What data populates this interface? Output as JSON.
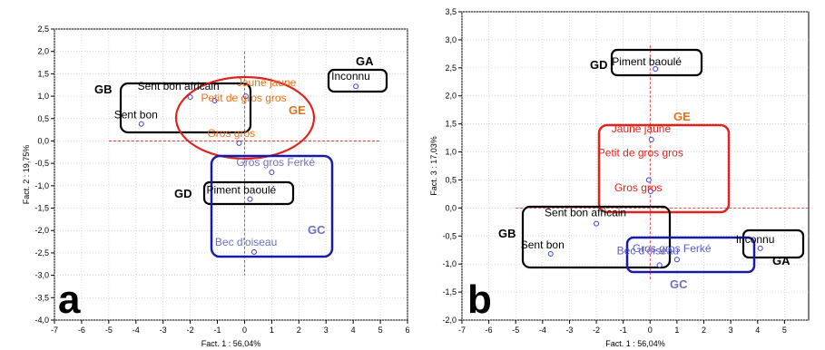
{
  "chart_data": [
    {
      "type": "scatter",
      "panel_label": "a",
      "xlabel": "Fact. 1 : 56,04%",
      "ylabel": "Fact. 2 : 19,75%",
      "xlim": [
        -7,
        6
      ],
      "ylim": [
        -4.0,
        2.5
      ],
      "xticks": [
        "-7",
        "-6",
        "-5",
        "-4",
        "-3",
        "-2",
        "-1",
        "0",
        "1",
        "2",
        "3",
        "4",
        "5",
        "6"
      ],
      "yticks": [
        "-4,0",
        "-3,5",
        "-3,0",
        "-2,5",
        "-2,0",
        "-1,5",
        "-1,0",
        "-0,5",
        "0,0",
        "0,5",
        "1,0",
        "1,5",
        "2,0",
        "2,5"
      ],
      "grid": true,
      "points": [
        {
          "label": "Sent bon africain",
          "x": -2.0,
          "y": 0.98,
          "label_color": "#000000"
        },
        {
          "label": "Sent bon",
          "x": -3.8,
          "y": 0.38,
          "label_color": "#000000"
        },
        {
          "label": "Jaune jaune",
          "x": 0.05,
          "y": 1.0,
          "label_color": "#e8701a"
        },
        {
          "label": "Petit de gros gros",
          "x": -1.1,
          "y": 0.9,
          "label_color": "#e8701a"
        },
        {
          "label": "Gros gros",
          "x": -0.2,
          "y": -0.05,
          "label_color": "#e8701a"
        },
        {
          "label": "Inconnu",
          "x": 4.1,
          "y": 1.22,
          "label_color": "#000000"
        },
        {
          "label": "Gros gros Ferké",
          "x": 1.0,
          "y": -0.7,
          "label_color": "#7070c0"
        },
        {
          "label": "Piment baoulé",
          "x": 0.2,
          "y": -1.3,
          "label_color": "#000000"
        },
        {
          "label": "Bec d'oiseau",
          "x": 0.35,
          "y": -2.48,
          "label_color": "#7070c0"
        }
      ],
      "groups": [
        {
          "name": "GB",
          "color": "#000000",
          "label_color": "#000000"
        },
        {
          "name": "GE",
          "color": "#e0231c",
          "label_color": "#e8701a"
        },
        {
          "name": "GA",
          "color": "#000000",
          "label_color": "#000000"
        },
        {
          "name": "GD",
          "color": "#000000",
          "label_color": "#000000"
        },
        {
          "name": "GC",
          "color": "#1a1aa8",
          "label_color": "#7070c0"
        }
      ]
    },
    {
      "type": "scatter",
      "panel_label": "b",
      "xlabel": "Fact. 1 : 56,04%",
      "ylabel": "Fact. 3 : 17,03%",
      "xlim": [
        -7,
        5.9
      ],
      "ylim": [
        -2.0,
        3.5
      ],
      "xticks": [
        "-7",
        "-6",
        "-5",
        "-4",
        "-3",
        "-2",
        "-1",
        "0",
        "1",
        "2",
        "3",
        "4",
        "5"
      ],
      "yticks": [
        "-2,0",
        "-1,5",
        "-1,0",
        "-0,5",
        "0,0",
        "0,5",
        "1,0",
        "1,5",
        "2,0",
        "2,5",
        "3,0",
        "3,5"
      ],
      "grid": true,
      "points": [
        {
          "label": "Piment baoulé",
          "x": 0.2,
          "y": 2.48,
          "label_color": "#000000"
        },
        {
          "label": "Jaune jaune",
          "x": 0.05,
          "y": 1.22,
          "label_color": "#e0231c"
        },
        {
          "label": "Petit de gros gros",
          "x": -0.05,
          "y": 0.5,
          "label_color": "#e0231c"
        },
        {
          "label": "Gros gros",
          "x": 0.02,
          "y": 0.3,
          "label_color": "#e0231c"
        },
        {
          "label": "Sent bon africain",
          "x": -2.0,
          "y": -0.28,
          "label_color": "#000000"
        },
        {
          "label": "Sent bon",
          "x": -3.7,
          "y": -0.82,
          "label_color": "#000000"
        },
        {
          "label": "Inconnu",
          "x": 4.1,
          "y": -0.72,
          "label_color": "#000000"
        },
        {
          "label": "Gros gros Ferké",
          "x": 1.0,
          "y": -0.92,
          "label_color": "#5a5ad0"
        },
        {
          "label": "Bec d'oiseau",
          "x": 0.35,
          "y": -1.02,
          "label_color": "#5a5ad0"
        }
      ],
      "groups": [
        {
          "name": "GD",
          "color": "#000000",
          "label_color": "#000000"
        },
        {
          "name": "GE",
          "color": "#e0231c",
          "label_color": "#e8701a"
        },
        {
          "name": "GB",
          "color": "#000000",
          "label_color": "#000000"
        },
        {
          "name": "GA",
          "color": "#000000",
          "label_color": "#000000"
        },
        {
          "name": "GC",
          "color": "#1a1aa8",
          "label_color": "#7070c0"
        }
      ]
    }
  ]
}
